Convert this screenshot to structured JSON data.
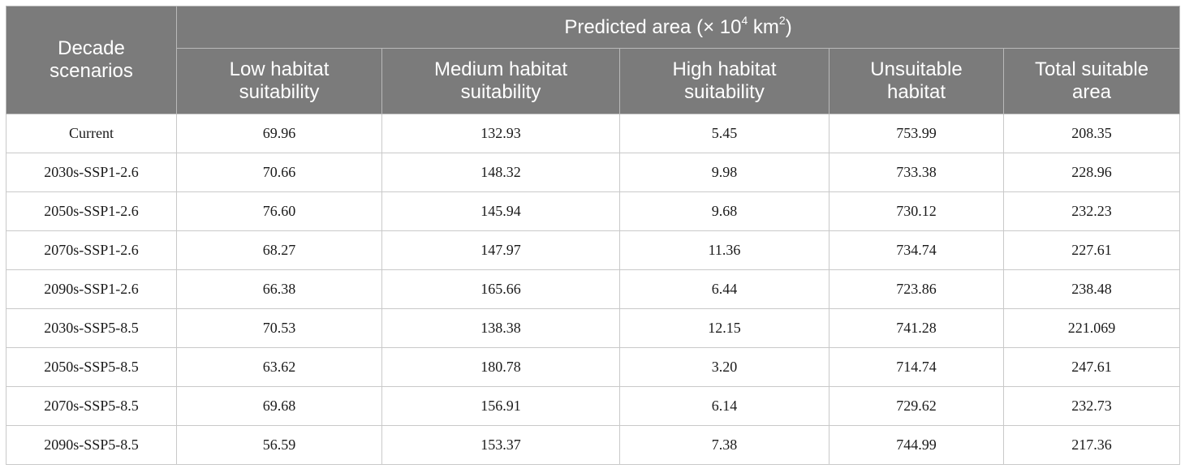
{
  "table": {
    "group_header": {
      "prefix": "Predicted area (× 10",
      "exp1": "4",
      "mid": " km",
      "exp2": "2",
      "suffix": ")"
    },
    "row_header": "Decade scenarios",
    "columns": [
      "Low habitat suitability",
      "Medium habitat suitability",
      "High habitat suitability",
      "Unsuitable habitat",
      "Total suitable area"
    ],
    "rows": [
      {
        "scenario": "Current",
        "values": [
          "69.96",
          "132.93",
          "5.45",
          "753.99",
          "208.35"
        ]
      },
      {
        "scenario": "2030s-SSP1-2.6",
        "values": [
          "70.66",
          "148.32",
          "9.98",
          "733.38",
          "228.96"
        ]
      },
      {
        "scenario": "2050s-SSP1-2.6",
        "values": [
          "76.60",
          "145.94",
          "9.68",
          "730.12",
          "232.23"
        ]
      },
      {
        "scenario": "2070s-SSP1-2.6",
        "values": [
          "68.27",
          "147.97",
          "11.36",
          "734.74",
          "227.61"
        ]
      },
      {
        "scenario": "2090s-SSP1-2.6",
        "values": [
          "66.38",
          "165.66",
          "6.44",
          "723.86",
          "238.48"
        ]
      },
      {
        "scenario": "2030s-SSP5-8.5",
        "values": [
          "70.53",
          "138.38",
          "12.15",
          "741.28",
          "221.069"
        ]
      },
      {
        "scenario": "2050s-SSP5-8.5",
        "values": [
          "63.62",
          "180.78",
          "3.20",
          "714.74",
          "247.61"
        ]
      },
      {
        "scenario": "2070s-SSP5-8.5",
        "values": [
          "69.68",
          "156.91",
          "6.14",
          "729.62",
          "232.73"
        ]
      },
      {
        "scenario": "2090s-SSP5-8.5",
        "values": [
          "56.59",
          "153.37",
          "7.38",
          "744.99",
          "217.36"
        ]
      }
    ]
  }
}
